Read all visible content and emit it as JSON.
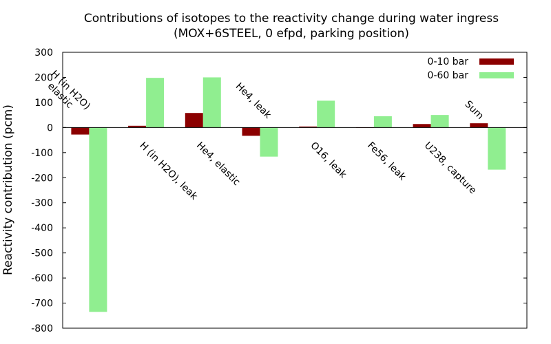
{
  "chart_data": {
    "type": "bar",
    "title": "Contributions of isotopes to the reactivity change during water ingress",
    "subtitle": "(MOX+6STEEL, 0 efpd, parking position)",
    "xlabel": "",
    "ylabel": "Reactivity contribution (pcm)",
    "ylim": [
      -800,
      300
    ],
    "yticks": [
      300,
      200,
      100,
      0,
      -100,
      -200,
      -300,
      -400,
      -500,
      -600,
      -700,
      -800
    ],
    "grid": false,
    "legend_position": "top-right",
    "categories": [
      [
        "H (in H2O)",
        "elastic"
      ],
      [
        "H (in H2O), leak"
      ],
      [
        "He4, elastic"
      ],
      [
        "He4, leak"
      ],
      [
        "O16, leak"
      ],
      [
        "Fe56, leak"
      ],
      [
        "U238, capture"
      ],
      [
        "Sum"
      ]
    ],
    "series": [
      {
        "name": "0-10 bar",
        "color": "#8b0000",
        "values": [
          -28,
          7,
          58,
          -33,
          4,
          1,
          14,
          17
        ]
      },
      {
        "name": "0-60 bar",
        "color": "#90ee90",
        "values": [
          -735,
          198,
          200,
          -116,
          107,
          45,
          50,
          -168
        ]
      }
    ]
  }
}
